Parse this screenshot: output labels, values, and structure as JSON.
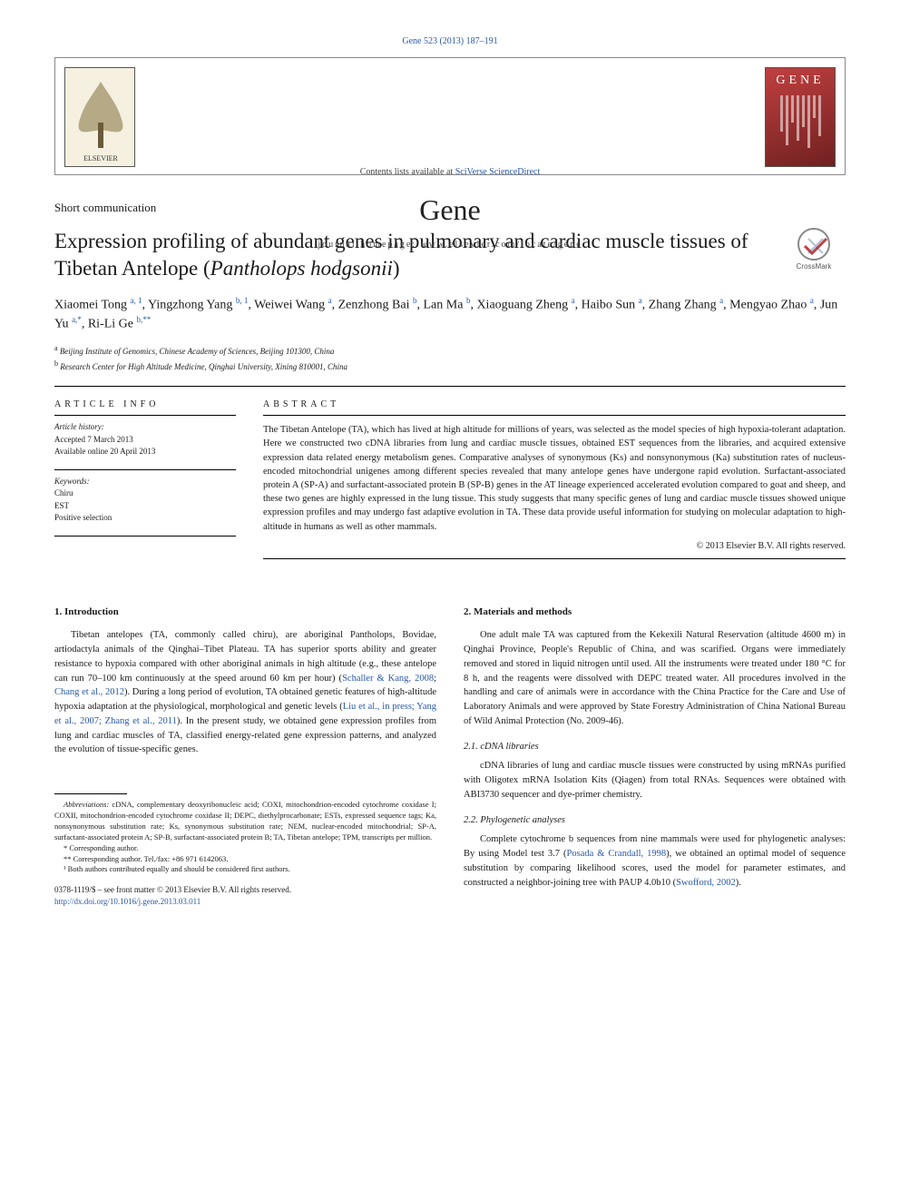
{
  "top_link": "Gene 523 (2013) 187–191",
  "header": {
    "contents_prefix": "Contents lists available at ",
    "contents_link": "SciVerse ScienceDirect",
    "journal": "Gene",
    "homepage": "journal homepage: www.elsevier.com/locate/gene",
    "gene_logo_text": "GENE"
  },
  "article_type": "Short communication",
  "title_pre": "Expression profiling of abundant genes in pulmonary and cardiac muscle tissues of Tibetan Antelope (",
  "title_ital": "Pantholops hodgsonii",
  "title_post": ")",
  "crossmark": "CrossMark",
  "authors_html": "Xiaomei Tong <sup>a, 1</sup>, Yingzhong Yang <sup>b, 1</sup>, Weiwei Wang <sup>a</sup>, Zenzhong Bai <sup>b</sup>, Lan Ma <sup>b</sup>, Xiaoguang Zheng <sup>a</sup>, Haibo Sun <sup>a</sup>, Zhang Zhang <sup>a</sup>, Mengyao Zhao <sup>a</sup>, Jun Yu <sup>a,*</sup>, Ri-Li Ge <sup>b,**</sup>",
  "affiliations": [
    {
      "sup": "a",
      "text": "Beijing Institute of Genomics, Chinese Academy of Sciences, Beijing 101300, China"
    },
    {
      "sup": "b",
      "text": "Research Center for High Altitude Medicine, Qinghai University, Xining 810001, China"
    }
  ],
  "article_info": {
    "heading": "ARTICLE INFO",
    "history_head": "Article history:",
    "history_lines": [
      "Accepted 7 March 2013",
      "Available online 20 April 2013"
    ],
    "keywords_head": "Keywords:",
    "keywords": [
      "Chiru",
      "EST",
      "Positive selection"
    ]
  },
  "abstract": {
    "heading": "ABSTRACT",
    "text": "The Tibetan Antelope (TA), which has lived at high altitude for millions of years, was selected as the model species of high hypoxia-tolerant adaptation. Here we constructed two cDNA libraries from lung and cardiac muscle tissues, obtained EST sequences from the libraries, and acquired extensive expression data related energy metabolism genes. Comparative analyses of synonymous (Ks) and nonsynonymous (Ka) substitution rates of nucleus-encoded mitochondrial unigenes among different species revealed that many antelope genes have undergone rapid evolution. Surfactant-associated protein A (SP-A) and surfactant-associated protein B (SP-B) genes in the AT lineage experienced accelerated evolution compared to goat and sheep, and these two genes are highly expressed in the lung tissue. This study suggests that many specific genes of lung and cardiac muscle tissues showed unique expression profiles and may undergo fast adaptive evolution in TA. These data provide useful information for studying on molecular adaptation to high-altitude in humans as well as other mammals.",
    "copyright": "© 2013 Elsevier B.V. All rights reserved."
  },
  "intro": {
    "heading": "1. Introduction",
    "p1a": "Tibetan antelopes (TA, commonly called chiru), are aboriginal Pantholops, Bovidae, artiodactyla animals of the Qinghai–Tibet Plateau. TA has superior sports ability and greater resistance to hypoxia compared with other aboriginal animals in high altitude (e.g., these antelope can run 70–100 km continuously at the speed around 60 km per hour) (",
    "ref1": "Schaller & Kang, 2008",
    "p1b": "; ",
    "ref2": "Chang et al., 2012",
    "p1c": "). During a long period of evolution, TA obtained genetic features of high-altitude hypoxia adaptation at the physiological, morphological and genetic levels (",
    "ref3": "Liu et al., in press; Yang et al., 2007; Zhang et al., 2011",
    "p1d": "). In the present study, we obtained gene expression profiles from lung and cardiac muscles of TA, classified energy-related gene expression patterns, and analyzed the evolution of tissue-specific genes."
  },
  "methods": {
    "heading": "2. Materials and methods",
    "p1": "One adult male TA was captured from the Kekexili Natural Reservation (altitude 4600 m) in Qinghai Province, People's Republic of China, and was scarified. Organs were immediately removed and stored in liquid nitrogen until used. All the instruments were treated under 180 °C for 8 h, and the reagents were dissolved with DEPC treated water. All procedures involved in the handling and care of animals were in accordance with the China Practice for the Care and Use of Laboratory Animals and were approved by State Forestry Administration of China National Bureau of Wild Animal Protection (No. 2009-46).",
    "sub1": "2.1. cDNA libraries",
    "p2": "cDNA libraries of lung and cardiac muscle tissues were constructed by using mRNAs purified with Oligotex mRNA Isolation Kits (Qiagen) from total RNAs. Sequences were obtained with ABI3730 sequencer and dye-primer chemistry.",
    "sub2": "2.2. Phylogenetic analyses",
    "p3a": "Complete cytochrome b sequences from nine mammals were used for phylogenetic analyses: By using Model test 3.7 (",
    "ref1": "Posada & Crandall, 1998",
    "p3b": "), we obtained an optimal model of sequence substitution by comparing likelihood scores, used the model for parameter estimates, and constructed a neighbor-joining tree with PAUP 4.0b10 (",
    "ref2": "Swofford, 2002",
    "p3c": ")."
  },
  "footnotes": {
    "abbrev_head": "Abbreviations:",
    "abbrev_text": " cDNA, complementary deoxyribonucleic acid; COXI, mitochondrion-encoded cytochrome coxidase I; COXII, mitochondrion-encoded cytochrome coxidase II; DEPC, diethylprocarbonate; ESTs, expressed sequence tags; Ka, nonsynonymous substitution rate; Ks, synonymous substitution rate; NEM, nuclear-encoded mitochondrial; SP-A, surfactant-associated protein A; SP-B, surfactant-associated protein B; TA, Tibetan antelope; TPM, transcripts per million.",
    "corr1": "* Corresponding author.",
    "corr2": "** Corresponding author. Tel./fax: +86 971 6142063.",
    "equal": "¹ Both authors contributed equally and should be considered first authors."
  },
  "footer": {
    "line1": "0378-1119/$ – see front matter © 2013 Elsevier B.V. All rights reserved.",
    "doi": "http://dx.doi.org/10.1016/j.gene.2013.03.011"
  },
  "colors": {
    "link": "#2758a8",
    "text": "#1a1a1a",
    "rule": "#000000"
  }
}
